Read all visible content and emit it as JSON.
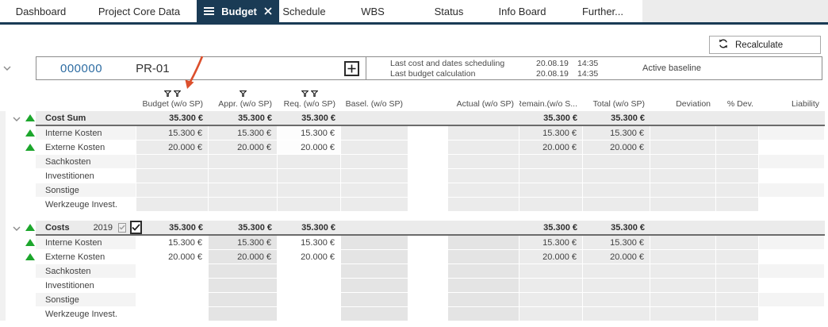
{
  "tabs": [
    {
      "label": "Dashboard",
      "active": false
    },
    {
      "label": "Project Core Data",
      "active": false
    },
    {
      "label": "Budget",
      "active": true
    },
    {
      "label": "Schedule",
      "active": false
    },
    {
      "label": "WBS",
      "active": false
    },
    {
      "label": "Status",
      "active": false
    },
    {
      "label": "Info Board",
      "active": false
    },
    {
      "label": "Further...",
      "active": false
    }
  ],
  "toolbar": {
    "recalculate_label": "Recalculate"
  },
  "project": {
    "number": "000000",
    "code": "PR-01",
    "info": [
      {
        "label": "Last cost and dates scheduling",
        "date": "20.08.19",
        "time": "14:35"
      },
      {
        "label": "Last budget calculation",
        "date": "20.08.19",
        "time": "14:35"
      }
    ],
    "baseline": "Active baseline"
  },
  "table": {
    "columns": [
      {
        "key": "budget",
        "label": "Budget (w/o SP)",
        "filters": 2
      },
      {
        "key": "appr",
        "label": "Appr. (w/o SP)",
        "filters": 1
      },
      {
        "key": "req",
        "label": "Req. (w/o SP)",
        "filters": 2
      },
      {
        "key": "basel",
        "label": "Basel. (w/o SP)",
        "filters": 0
      },
      {
        "key": "actual",
        "label": "Actual (w/o SP)",
        "filters": 0
      },
      {
        "key": "remain",
        "label": "Remain.(w/o S...",
        "filters": 0
      },
      {
        "key": "total",
        "label": "Total (w/o SP)",
        "filters": 0
      },
      {
        "key": "dev",
        "label": "Deviation",
        "filters": 0
      },
      {
        "key": "pdev",
        "label": "% Dev.",
        "filters": 0
      },
      {
        "key": "liab",
        "label": "Liability",
        "filters": 0
      }
    ],
    "sections": [
      {
        "header": {
          "label": "Cost Sum",
          "values": {
            "budget": "35.300 €",
            "appr": "35.300 €",
            "req": "35.300 €",
            "remain": "35.300 €",
            "total": "35.300 €"
          }
        },
        "rows": [
          {
            "label": "Interne Kosten",
            "trend": "up",
            "values": {
              "budget": "15.300 €",
              "appr": "15.300 €",
              "req": "15.300 €",
              "remain": "15.300 €",
              "total": "15.300 €"
            }
          },
          {
            "label": "Externe Kosten",
            "trend": "up",
            "values": {
              "budget": "20.000 €",
              "appr": "20.000 €",
              "req": "20.000 €",
              "remain": "20.000 €",
              "total": "20.000 €"
            }
          },
          {
            "label": "Sachkosten",
            "trend": null,
            "values": {}
          },
          {
            "label": "Investitionen",
            "trend": null,
            "values": {}
          },
          {
            "label": "Sonstige",
            "trend": null,
            "values": {}
          },
          {
            "label": "Werkzeuge Invest.",
            "trend": null,
            "values": {}
          }
        ]
      },
      {
        "header": {
          "label": "Costs",
          "year": "2019",
          "year_checkbox_checked": true,
          "confirm_checkbox_checked": true,
          "values": {
            "budget": "35.300 €",
            "appr": "35.300 €",
            "req": "35.300 €",
            "remain": "35.300 €",
            "total": "35.300 €"
          }
        },
        "rows": [
          {
            "label": "Interne Kosten",
            "trend": "up",
            "values": {
              "budget": "15.300 €",
              "appr": "15.300 €",
              "req": "15.300 €",
              "remain": "15.300 €",
              "total": "15.300 €"
            }
          },
          {
            "label": "Externe Kosten",
            "trend": "up",
            "values": {
              "budget": "20.000 €",
              "appr": "20.000 €",
              "req": "20.000 €",
              "remain": "20.000 €",
              "total": "20.000 €"
            }
          },
          {
            "label": "Sachkosten",
            "trend": null,
            "values": {}
          },
          {
            "label": "Investitionen",
            "trend": null,
            "values": {}
          },
          {
            "label": "Sonstige",
            "trend": null,
            "values": {}
          },
          {
            "label": "Werkzeuge Invest.",
            "trend": null,
            "values": {}
          }
        ]
      }
    ]
  },
  "colors": {
    "accent_navy": "#1a3b55",
    "trend_green": "#1ca62c",
    "annotation_arrow": "#dc4f2c",
    "project_number_blue": "#2d6ca2",
    "cell_grey": "#ebebeb"
  }
}
